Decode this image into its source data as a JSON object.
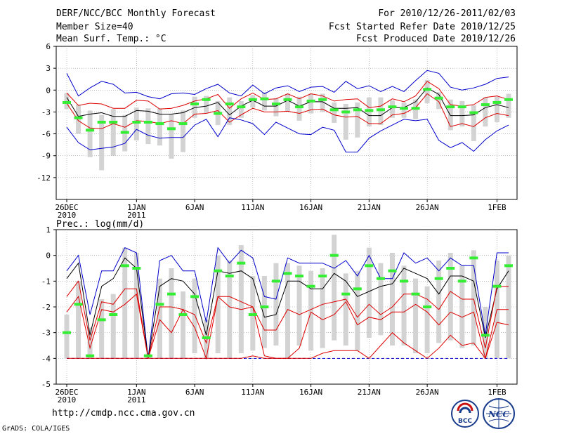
{
  "header": {
    "title": "DERF/NCC/BCC Monthly Forecast",
    "member_size": "Member Size=40",
    "variable": "Mean Surf. Temp.: °C",
    "forecast_period": "For 2010/12/26-2011/02/03",
    "started_refer": "Fcst Started Refer Date 2010/12/25",
    "produced_date": "Fcst Produced Date 2010/12/26"
  },
  "footer": {
    "url": "http://cmdp.ncc.cma.gov.cn",
    "grads": "GrADS: COLA/IGES",
    "logo_bcc": "BCC",
    "logo_ncc": "NCC"
  },
  "colors": {
    "ensemble_max_min": "#0000cc",
    "percentile_band": "#dd0000",
    "mean": "#000000",
    "median": "#33ee33",
    "box": "#d3d3d3",
    "grid": "#999999"
  },
  "chart_data": [
    {
      "type": "line",
      "title": "Mean Surf. Temp.: °C",
      "x_tick_labels": [
        "26DEC",
        "1JAN",
        "6JAN",
        "11JAN",
        "16JAN",
        "21JAN",
        "26JAN",
        "1FEB"
      ],
      "x_tick_sublabels": [
        "2010",
        "2011",
        "",
        "",
        "",
        "",
        "",
        ""
      ],
      "x_tick_days": [
        0,
        6,
        11,
        16,
        21,
        26,
        31,
        37
      ],
      "y_ticks": [
        "6",
        "3",
        "0",
        "-3",
        "-6",
        "-9",
        "-12"
      ],
      "ylim": [
        -15,
        6
      ],
      "days": 39,
      "series": [
        {
          "name": "max",
          "values": [
            2.3,
            -0.8,
            0.3,
            1.2,
            0.8,
            -0.4,
            -0.3,
            -0.9,
            -1.2,
            -0.5,
            -0.4,
            -0.6,
            0.2,
            0.8,
            -0.4,
            -0.8,
            0.7,
            -0.5,
            0.3,
            0.6,
            -0.2,
            0.4,
            0.5,
            -0.3,
            1.2,
            0.2,
            0.6,
            -0.2,
            0.5,
            -0.2,
            1.3,
            2.7,
            2.3,
            0.4,
            0.0,
            0.3,
            0.8,
            1.6,
            1.8
          ]
        },
        {
          "name": "p75",
          "values": [
            -0.4,
            -2.1,
            -1.8,
            -1.9,
            -2.5,
            -2.5,
            -1.4,
            -1.5,
            -2.6,
            -2.5,
            -2.1,
            -1.5,
            -1.2,
            -0.6,
            -2.5,
            -1.2,
            -0.4,
            -1.3,
            -1.2,
            -0.5,
            -1.2,
            -0.5,
            -0.8,
            -1.5,
            -1.3,
            -1.2,
            -2.4,
            -2.2,
            -1.2,
            -1.6,
            -0.8,
            1.2,
            0.2,
            -2.0,
            -2.2,
            -2.0,
            -1.0,
            -0.8,
            -1.3
          ]
        },
        {
          "name": "mean",
          "values": [
            -1.0,
            -3.6,
            -3.3,
            -3.1,
            -3.6,
            -3.6,
            -2.8,
            -2.9,
            -3.3,
            -3.3,
            -3.1,
            -2.4,
            -2.2,
            -1.7,
            -3.4,
            -2.2,
            -1.4,
            -2.2,
            -2.2,
            -1.4,
            -2.2,
            -1.6,
            -1.6,
            -2.5,
            -2.5,
            -2.4,
            -3.5,
            -3.5,
            -2.4,
            -2.4,
            -1.6,
            0.3,
            -0.6,
            -3.5,
            -3.5,
            -3.4,
            -2.4,
            -2.0,
            -2.4
          ]
        },
        {
          "name": "p25",
          "values": [
            -1.8,
            -4.2,
            -5.2,
            -5.3,
            -4.6,
            -5.1,
            -4.2,
            -4.3,
            -4.6,
            -4.2,
            -4.6,
            -3.3,
            -3.2,
            -2.8,
            -4.4,
            -3.4,
            -2.5,
            -3.0,
            -3.0,
            -2.9,
            -3.2,
            -2.7,
            -2.6,
            -3.4,
            -3.7,
            -3.6,
            -4.6,
            -4.6,
            -3.4,
            -3.2,
            -2.4,
            -0.5,
            -1.6,
            -5.0,
            -4.6,
            -5.0,
            -3.8,
            -3.2,
            -3.5
          ]
        },
        {
          "name": "min",
          "values": [
            -5.1,
            -7.2,
            -8.2,
            -8.0,
            -7.8,
            -7.3,
            -5.4,
            -6.2,
            -6.6,
            -6.5,
            -6.5,
            -4.8,
            -4.0,
            -6.4,
            -3.8,
            -4.1,
            -4.6,
            -6.1,
            -4.4,
            -5.2,
            -6.0,
            -6.1,
            -5.1,
            -5.5,
            -8.5,
            -8.5,
            -6.6,
            -5.6,
            -4.8,
            -4.0,
            -4.2,
            -4.0,
            -6.9,
            -7.9,
            -7.2,
            -8.4,
            -6.8,
            -5.6,
            -4.8
          ]
        }
      ],
      "median": [
        -1.7,
        -3.8,
        -5.5,
        -4.4,
        -4.4,
        -5.8,
        -4.4,
        -4.4,
        -4.6,
        -5.3,
        -4.6,
        -1.9,
        -1.3,
        -3.2,
        -1.9,
        -2.3,
        -1.3,
        -1.2,
        -1.9,
        -1.3,
        -2.3,
        -1.5,
        -1.3,
        -2.7,
        -3.0,
        -2.7,
        -2.8,
        -2.7,
        -2.3,
        -2.5,
        -2.5,
        0.1,
        -1.1,
        -2.3,
        -2.3,
        -3.1,
        -2.0,
        -1.7,
        -1.3
      ],
      "box_top": [
        -0.4,
        -2.0,
        -2.8,
        -3.4,
        -2.6,
        -3.4,
        -2.4,
        -2.5,
        -2.5,
        -3.3,
        -2.8,
        -0.9,
        -0.8,
        -1.5,
        -1.0,
        -1.5,
        -0.7,
        -0.3,
        -1.1,
        -0.5,
        -0.9,
        -0.5,
        -0.5,
        -1.7,
        -1.9,
        -1.7,
        -1.0,
        -1.0,
        -1.4,
        -1.7,
        -1.3,
        1.4,
        -0.3,
        -1.3,
        -1.5,
        -2.1,
        -1.0,
        -0.9,
        -0.5
      ],
      "box_bottom": [
        -2.6,
        -6.0,
        -9.2,
        -11.0,
        -9.0,
        -8.4,
        -6.9,
        -7.4,
        -7.6,
        -9.4,
        -8.5,
        -3.8,
        -3.2,
        -4.8,
        -4.8,
        -3.8,
        -2.4,
        -2.8,
        -3.6,
        -2.9,
        -4.2,
        -3.2,
        -3.0,
        -4.5,
        -6.8,
        -6.5,
        -5.0,
        -4.8,
        -3.8,
        -3.8,
        -4.0,
        -1.8,
        -2.6,
        -5.5,
        -5.0,
        -7.0,
        -5.0,
        -4.4,
        -3.8
      ]
    },
    {
      "type": "line",
      "title": "Prec.: log(mm/d)",
      "x_tick_labels": [
        "26DEC",
        "1JAN",
        "6JAN",
        "11JAN",
        "16JAN",
        "21JAN",
        "26JAN",
        "1FEB"
      ],
      "x_tick_sublabels": [
        "2010",
        "2011",
        "",
        "",
        "",
        "",
        "",
        ""
      ],
      "x_tick_days": [
        0,
        6,
        11,
        16,
        21,
        26,
        31,
        37
      ],
      "y_ticks": [
        "1",
        "0",
        "-1",
        "-2",
        "-3",
        "-4",
        "-5"
      ],
      "ylim": [
        -5,
        1
      ],
      "days": 39,
      "series": [
        {
          "name": "max",
          "values": [
            -0.6,
            0.0,
            -2.3,
            -0.6,
            -0.6,
            0.3,
            0.1,
            -4.0,
            -0.2,
            0.0,
            -0.6,
            -0.6,
            -2.6,
            0.3,
            -0.3,
            0.2,
            -0.1,
            -1.6,
            -1.7,
            -0.1,
            -0.3,
            -0.3,
            -0.3,
            -0.5,
            -0.2,
            -0.8,
            0.0,
            -0.9,
            -0.9,
            0.1,
            -0.3,
            -0.1,
            -0.6,
            -0.1,
            -0.4,
            -0.4,
            -3.1,
            0.1,
            0.1
          ]
        },
        {
          "name": "mean",
          "values": [
            -0.9,
            -0.3,
            -3.1,
            -1.2,
            -0.9,
            -0.1,
            -0.5,
            -4.0,
            -1.2,
            -0.9,
            -1.0,
            -1.5,
            -3.1,
            -0.6,
            -0.7,
            -0.6,
            -0.9,
            -2.4,
            -2.3,
            -1.0,
            -1.0,
            -1.3,
            -1.3,
            -0.7,
            -1.0,
            -1.6,
            -1.4,
            -1.2,
            -1.1,
            -0.5,
            -0.7,
            -0.9,
            -1.5,
            -0.8,
            -0.8,
            -1.0,
            -3.2,
            -1.3,
            -0.6
          ]
        },
        {
          "name": "p25",
          "values": [
            -1.6,
            -1.0,
            -3.3,
            -1.8,
            -1.9,
            -1.3,
            -1.3,
            -4.0,
            -2.0,
            -2.0,
            -2.1,
            -2.3,
            -3.4,
            -1.6,
            -1.6,
            -1.8,
            -2.0,
            -2.9,
            -2.9,
            -2.1,
            -2.3,
            -2.1,
            -1.9,
            -1.8,
            -1.7,
            -2.4,
            -1.9,
            -2.3,
            -2.0,
            -1.5,
            -1.5,
            -1.7,
            -2.1,
            -1.4,
            -1.7,
            -1.7,
            -3.6,
            -1.2,
            -1.2
          ]
        },
        {
          "name": "p10",
          "values": [
            -2.2,
            -1.6,
            -3.6,
            -2.1,
            -2.2,
            -1.9,
            -1.5,
            -4.0,
            -2.5,
            -3.0,
            -2.1,
            -2.8,
            -4.0,
            -1.6,
            -2.0,
            -2.1,
            -2.0,
            -3.9,
            -4.0,
            -4.0,
            -3.6,
            -2.2,
            -2.5,
            -2.3,
            -1.8,
            -2.7,
            -2.4,
            -2.5,
            -2.2,
            -2.2,
            -1.9,
            -2.2,
            -2.7,
            -2.2,
            -2.4,
            -2.2,
            -4.0,
            -2.1,
            -2.1
          ]
        },
        {
          "name": "min",
          "values": [
            -4.0,
            -4.0,
            -4.0,
            -4.0,
            -4.0,
            -4.0,
            -4.0,
            -4.0,
            -4.0,
            -4.0,
            -4.0,
            -4.0,
            -4.0,
            -4.0,
            -4.0,
            -4.0,
            -3.9,
            -4.0,
            -4.0,
            -4.0,
            -4.0,
            -4.0,
            -3.8,
            -3.7,
            -3.7,
            -3.7,
            -4.0,
            -3.5,
            -3.0,
            -3.4,
            -3.7,
            -4.0,
            -3.6,
            -3.1,
            -3.5,
            -3.4,
            -4.0,
            -2.6,
            -2.7
          ]
        }
      ],
      "lower_floor": -4.0,
      "median": [
        -3.0,
        -1.9,
        -3.9,
        -2.5,
        -2.3,
        -0.4,
        -0.5,
        -3.9,
        -1.9,
        -1.5,
        -2.3,
        -1.6,
        -3.2,
        -0.6,
        -0.8,
        -0.3,
        -2.3,
        -2.0,
        -1.0,
        -0.7,
        -0.8,
        -1.2,
        -0.8,
        0.0,
        -1.5,
        -1.3,
        -0.4,
        -0.9,
        -0.6,
        -1.0,
        -1.5,
        -2.0,
        -0.9,
        -0.5,
        -1.0,
        -0.1,
        -3.1,
        -1.2,
        -0.4
      ],
      "box_top": [
        -2.3,
        -1.0,
        -2.8,
        -1.7,
        -1.5,
        0.3,
        0.1,
        -3.8,
        -0.9,
        -0.5,
        -1.4,
        -0.9,
        -2.5,
        0.0,
        -0.2,
        0.4,
        -0.8,
        -0.8,
        -0.3,
        -0.3,
        -0.4,
        -0.6,
        -0.5,
        0.8,
        -0.7,
        -0.6,
        0.3,
        -0.3,
        0.1,
        -0.4,
        -0.9,
        -1.2,
        -0.2,
        0.1,
        -0.4,
        0.2,
        -2.0,
        -0.2,
        0.0
      ],
      "box_bottom": [
        -4.0,
        -4.0,
        -4.0,
        -4.0,
        -4.0,
        -4.0,
        -4.0,
        -4.0,
        -4.0,
        -4.0,
        -4.0,
        -3.8,
        -4.0,
        -3.8,
        -4.0,
        -3.8,
        -3.7,
        -3.6,
        -3.5,
        -4.0,
        -3.5,
        -3.7,
        -3.6,
        -3.3,
        -3.5,
        -3.7,
        -3.2,
        -3.1,
        -3.5,
        -3.5,
        -3.8,
        -3.8,
        -3.4,
        -3.3,
        -3.6,
        -3.5,
        -4.0,
        -4.0,
        -4.0
      ]
    }
  ]
}
